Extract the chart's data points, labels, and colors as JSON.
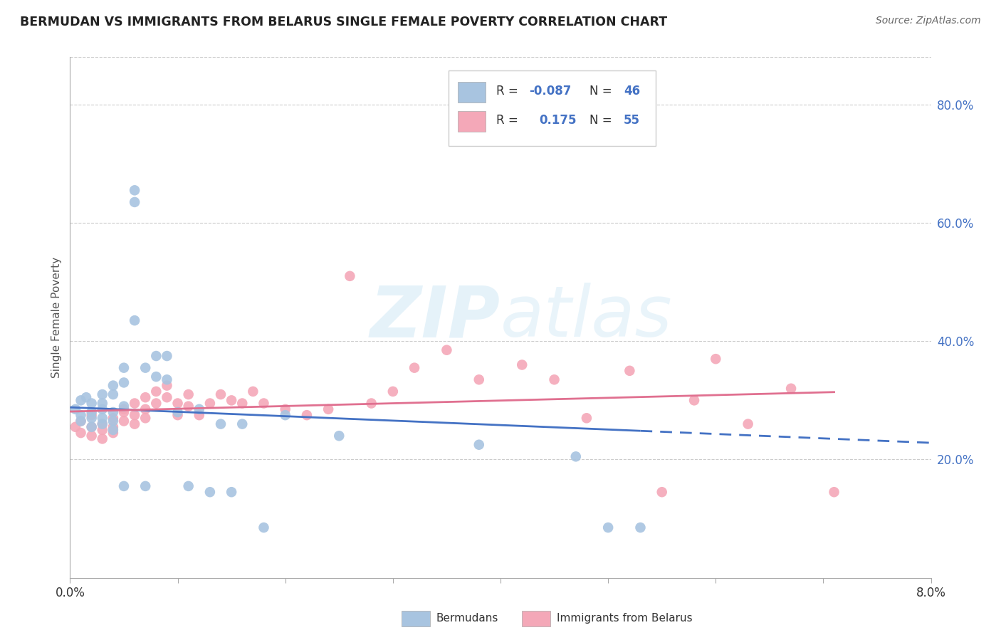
{
  "title": "BERMUDAN VS IMMIGRANTS FROM BELARUS SINGLE FEMALE POVERTY CORRELATION CHART",
  "source": "Source: ZipAtlas.com",
  "ylabel": "Single Female Poverty",
  "right_yticks": [
    "80.0%",
    "60.0%",
    "40.0%",
    "20.0%"
  ],
  "right_ytick_vals": [
    0.8,
    0.6,
    0.4,
    0.2
  ],
  "legend_label1": "Bermudans",
  "legend_label2": "Immigrants from Belarus",
  "r1": -0.087,
  "n1": 46,
  "r2": 0.175,
  "n2": 55,
  "color_bermuda": "#a8c4e0",
  "color_belarus": "#f4a8b8",
  "color_blue": "#4472c4",
  "color_pink": "#e07090",
  "watermark_zip": "ZIP",
  "watermark_atlas": "atlas",
  "xmin": 0.0,
  "xmax": 0.08,
  "ymin": 0.0,
  "ymax": 0.88,
  "bermuda_x": [
    0.0005,
    0.001,
    0.001,
    0.001,
    0.0015,
    0.002,
    0.002,
    0.002,
    0.002,
    0.003,
    0.003,
    0.003,
    0.003,
    0.003,
    0.004,
    0.004,
    0.004,
    0.004,
    0.004,
    0.005,
    0.005,
    0.005,
    0.005,
    0.006,
    0.006,
    0.006,
    0.007,
    0.007,
    0.008,
    0.008,
    0.009,
    0.009,
    0.01,
    0.011,
    0.012,
    0.013,
    0.014,
    0.015,
    0.016,
    0.018,
    0.02,
    0.025,
    0.038,
    0.047,
    0.05,
    0.053
  ],
  "bermuda_y": [
    0.285,
    0.3,
    0.275,
    0.265,
    0.305,
    0.295,
    0.28,
    0.27,
    0.255,
    0.31,
    0.295,
    0.285,
    0.27,
    0.26,
    0.325,
    0.31,
    0.28,
    0.265,
    0.25,
    0.355,
    0.33,
    0.29,
    0.155,
    0.635,
    0.655,
    0.435,
    0.355,
    0.155,
    0.375,
    0.34,
    0.375,
    0.335,
    0.28,
    0.155,
    0.285,
    0.145,
    0.26,
    0.145,
    0.26,
    0.085,
    0.275,
    0.24,
    0.225,
    0.205,
    0.085,
    0.085
  ],
  "belarus_x": [
    0.0005,
    0.001,
    0.001,
    0.002,
    0.002,
    0.002,
    0.003,
    0.003,
    0.003,
    0.004,
    0.004,
    0.004,
    0.005,
    0.005,
    0.005,
    0.006,
    0.006,
    0.006,
    0.007,
    0.007,
    0.007,
    0.008,
    0.008,
    0.009,
    0.009,
    0.01,
    0.01,
    0.011,
    0.011,
    0.012,
    0.013,
    0.014,
    0.015,
    0.016,
    0.017,
    0.018,
    0.02,
    0.022,
    0.024,
    0.026,
    0.028,
    0.03,
    0.032,
    0.035,
    0.038,
    0.042,
    0.045,
    0.048,
    0.052,
    0.055,
    0.058,
    0.06,
    0.063,
    0.067,
    0.071
  ],
  "belarus_y": [
    0.255,
    0.265,
    0.245,
    0.275,
    0.255,
    0.24,
    0.26,
    0.25,
    0.235,
    0.27,
    0.255,
    0.245,
    0.285,
    0.265,
    0.28,
    0.295,
    0.275,
    0.26,
    0.305,
    0.285,
    0.27,
    0.315,
    0.295,
    0.325,
    0.305,
    0.295,
    0.275,
    0.31,
    0.29,
    0.275,
    0.295,
    0.31,
    0.3,
    0.295,
    0.315,
    0.295,
    0.285,
    0.275,
    0.285,
    0.51,
    0.295,
    0.315,
    0.355,
    0.385,
    0.335,
    0.36,
    0.335,
    0.27,
    0.35,
    0.145,
    0.3,
    0.37,
    0.26,
    0.32,
    0.145
  ]
}
